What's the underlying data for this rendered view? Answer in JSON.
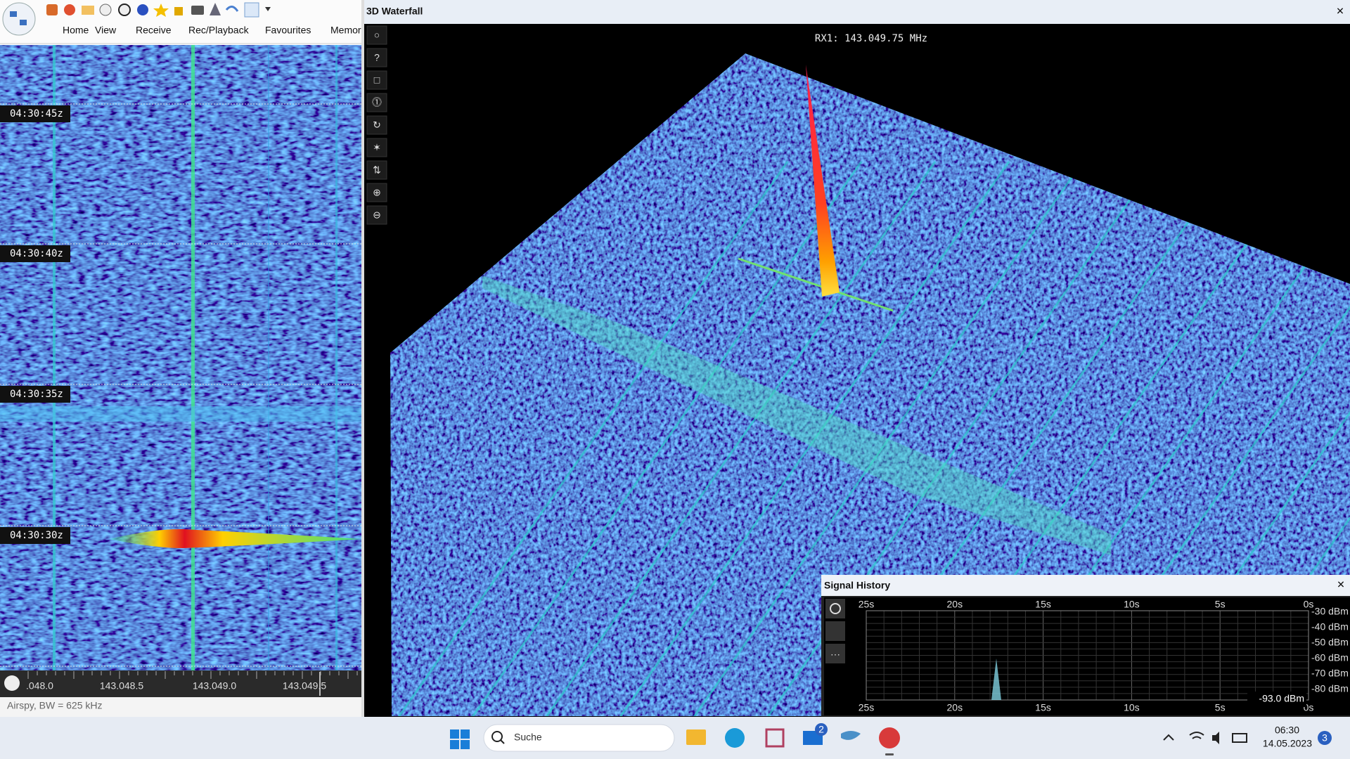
{
  "toolbar": {
    "menu": [
      "Home",
      "View",
      "Receive",
      "Rec/Playback",
      "Favourites",
      "Memor"
    ]
  },
  "waterfall": {
    "time_labels": [
      "04:30:45z",
      "04:30:40z",
      "04:30:35z",
      "04:30:30z"
    ],
    "freq_labels": [
      ".048.0",
      "143.048.5",
      "143.049.0",
      "143.049.5"
    ]
  },
  "status": "Airspy, BW = 625 kHz",
  "waterfall_3d": {
    "title": "3D Waterfall",
    "frequency": "RX1: 143.049.75 MHz"
  },
  "signal_history": {
    "title": "Signal History",
    "time_labels": [
      "25s",
      "20s",
      "15s",
      "10s",
      "5s",
      "0s"
    ],
    "level_labels": [
      "-30 dBm",
      "-40 dBm",
      "-50 dBm",
      "-60 dBm",
      "-70 dBm",
      "-80 dBm"
    ],
    "reading": "-93.0 dBm"
  },
  "taskbar": {
    "search": "Suche",
    "mail_badge": "2",
    "time": "06:30",
    "date": "14.05.2023",
    "notification_count": "3"
  }
}
